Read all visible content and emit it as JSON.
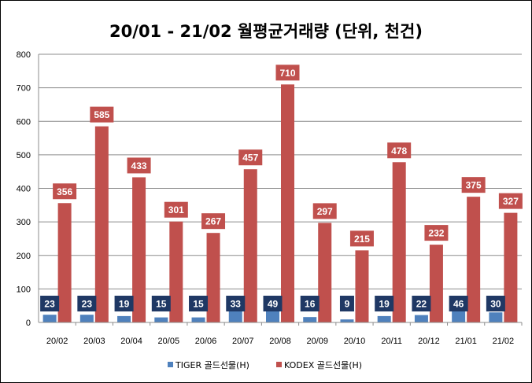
{
  "chart_data": {
    "type": "bar",
    "title": "20/01 - 21/02 월평균거래량 (단위, 천건)",
    "xlabel": "",
    "ylabel": "",
    "ylim": [
      0,
      800
    ],
    "yticks": [
      "0",
      "100",
      "200",
      "300",
      "400",
      "500",
      "600",
      "700",
      "800"
    ],
    "grid": true,
    "legend_position": "bottom",
    "categories": [
      "20/02",
      "20/03",
      "20/04",
      "20/05",
      "20/06",
      "20/07",
      "20/08",
      "20/09",
      "20/10",
      "20/11",
      "20/12",
      "21/01",
      "21/02"
    ],
    "series": [
      {
        "name": "TIGER 골드선물(H)",
        "color": "#4f81bd",
        "label_color": "#1f3864",
        "values": [
          23,
          23,
          19,
          15,
          15,
          33,
          49,
          16,
          9,
          19,
          22,
          46,
          30
        ],
        "labels": [
          "23",
          "23",
          "19",
          "15",
          "15",
          "33",
          "49",
          "16",
          "9",
          "19",
          "22",
          "46",
          "30"
        ]
      },
      {
        "name": "KODEX 골드선물(H)",
        "color": "#c0504d",
        "label_color": "#c0504d",
        "values": [
          356,
          585,
          433,
          301,
          267,
          457,
          710,
          297,
          215,
          478,
          232,
          375,
          327
        ],
        "labels": [
          "356",
          "585",
          "433",
          "301",
          "267",
          "457",
          "710",
          "297",
          "215",
          "478",
          "232",
          "375",
          "327"
        ]
      }
    ]
  }
}
